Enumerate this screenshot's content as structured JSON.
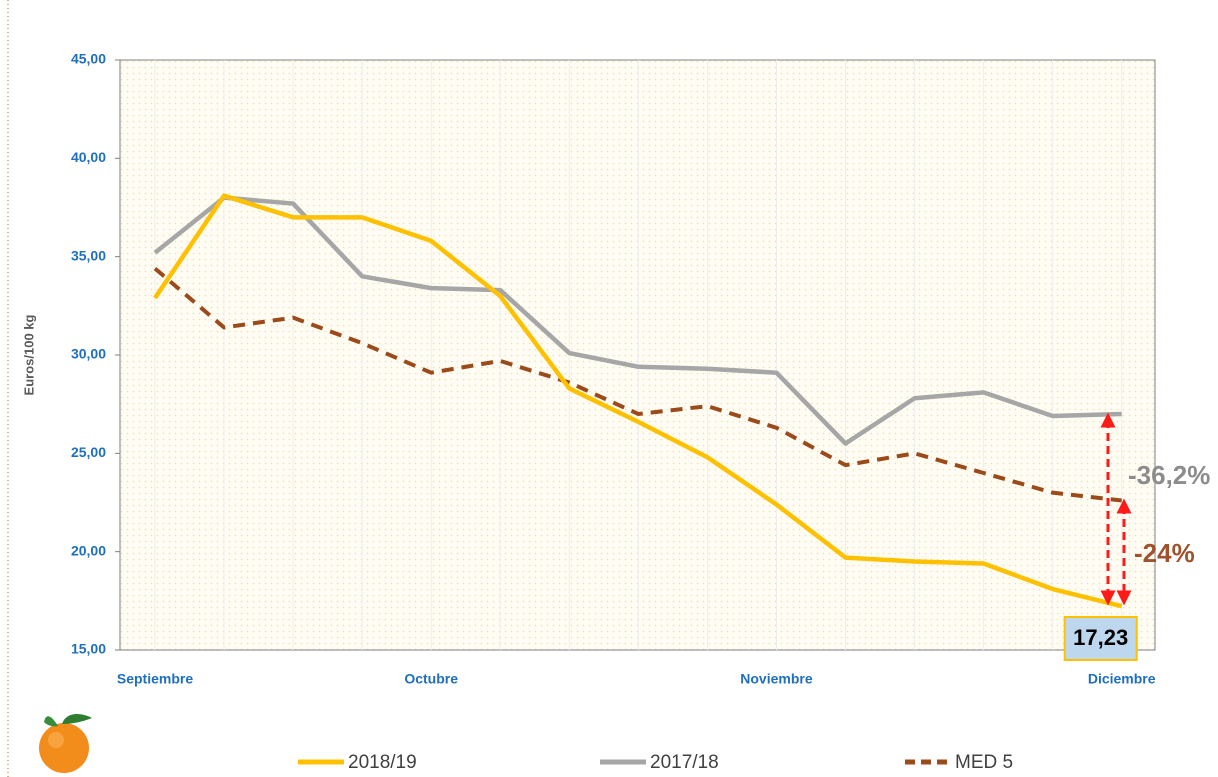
{
  "chart_data": {
    "type": "line",
    "y_label": "Euros/100 kg",
    "categories": [
      "Septiembre",
      null,
      null,
      null,
      "Octubre",
      null,
      null,
      null,
      null,
      "Noviembre",
      null,
      null,
      null,
      null,
      "Diciembre"
    ],
    "ylim": [
      15,
      45
    ],
    "yticks": [
      {
        "value": 15,
        "label": "15,00"
      },
      {
        "value": 20,
        "label": "20,00"
      },
      {
        "value": 25,
        "label": "25,00"
      },
      {
        "value": 30,
        "label": "30,00"
      },
      {
        "value": 35,
        "label": "35,00"
      },
      {
        "value": 40,
        "label": "40,00"
      },
      {
        "value": 45,
        "label": "45,00"
      }
    ],
    "series": [
      {
        "name": "2018/19",
        "color": "#ffc000",
        "style": "solid",
        "values": [
          32.9,
          38.1,
          37.0,
          37.0,
          35.8,
          33.0,
          28.3,
          26.6,
          24.8,
          22.4,
          19.7,
          19.5,
          19.4,
          18.1,
          17.23
        ],
        "value_labels": [
          null,
          null,
          null,
          null,
          null,
          null,
          null,
          null,
          null,
          null,
          null,
          null,
          null,
          null,
          "17,23"
        ]
      },
      {
        "name": "2017/18",
        "color": "#a6a6a6",
        "style": "solid",
        "values": [
          35.2,
          38.0,
          37.7,
          34.0,
          33.4,
          33.3,
          30.1,
          29.4,
          29.3,
          29.1,
          25.5,
          27.8,
          28.1,
          26.9,
          27.0
        ]
      },
      {
        "name": "MED 5",
        "color": "#9c4a1a",
        "style": "dashed",
        "values": [
          34.4,
          31.4,
          31.9,
          30.6,
          29.1,
          29.7,
          28.6,
          27.0,
          27.4,
          26.3,
          24.4,
          25.0,
          24.0,
          23.0,
          22.6
        ]
      }
    ],
    "annotations": [
      {
        "text": "-36,2%",
        "color": "#8c8c8c"
      },
      {
        "text": "-24%",
        "color": "#a0522d"
      }
    ]
  }
}
